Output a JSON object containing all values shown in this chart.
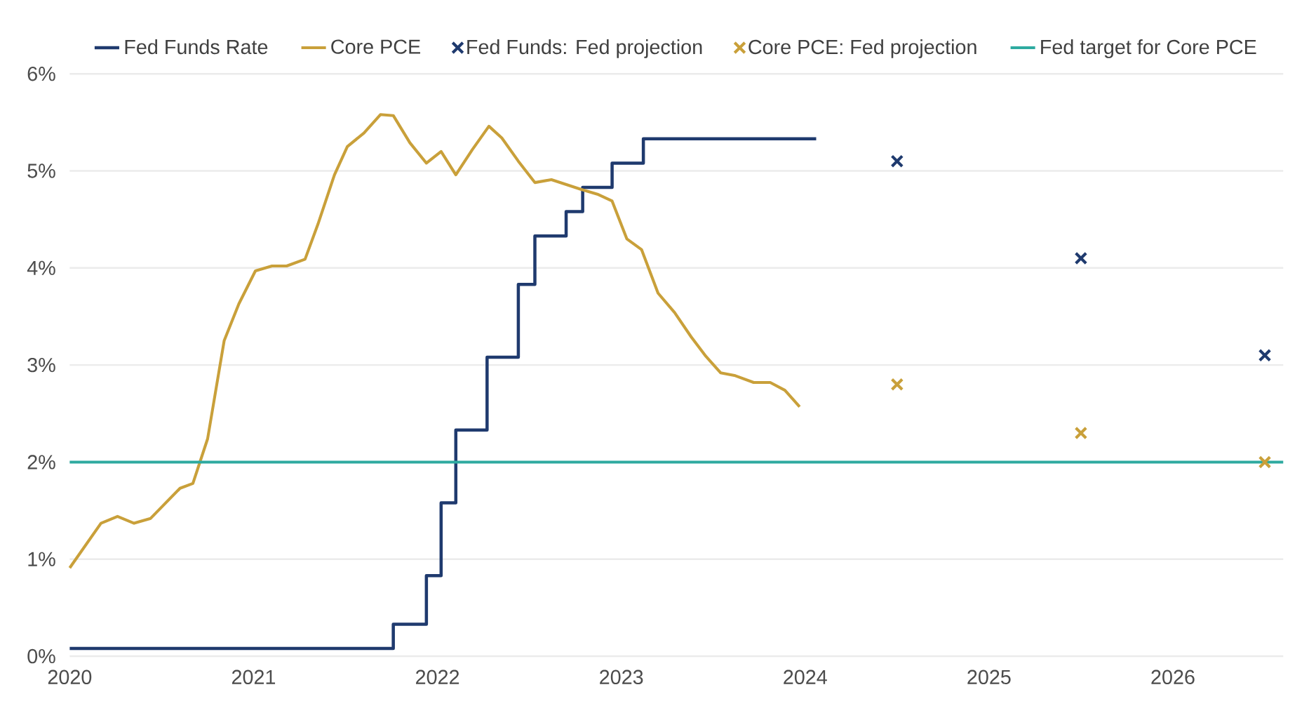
{
  "chart_data": {
    "type": "line",
    "xlim": [
      2020,
      2026.6
    ],
    "xticks": [
      2020,
      2021,
      2022,
      2023,
      2024,
      2025,
      2026
    ],
    "ylim": [
      0,
      6
    ],
    "yticks": [
      {
        "value": 0,
        "label": "0%"
      },
      {
        "value": 1,
        "label": "1%"
      },
      {
        "value": 2,
        "label": "2%"
      },
      {
        "value": 3,
        "label": "3%"
      },
      {
        "value": 4,
        "label": "4%"
      },
      {
        "value": 5,
        "label": "5%"
      },
      {
        "value": 6,
        "label": "6%"
      }
    ],
    "grid": "y",
    "legend": "top",
    "marker": "none",
    "line_style": "solid",
    "series": [
      {
        "name": "Fed Funds Rate",
        "type": "step",
        "color": "#1f3a6e",
        "x": [
          2020,
          2021.76,
          2021.94,
          2022.02,
          2022.1,
          2022.27,
          2022.44,
          2022.53,
          2022.7,
          2022.79,
          2022.95,
          2023.12,
          2024.06
        ],
        "values": [
          0.08,
          0.33,
          0.83,
          1.58,
          2.33,
          3.08,
          3.83,
          4.33,
          4.58,
          4.83,
          5.08,
          5.33,
          5.33
        ]
      },
      {
        "name": "Core PCE",
        "color": "#c9a03a",
        "x": [
          2020.0,
          2020.17,
          2020.26,
          2020.35,
          2020.44,
          2020.6,
          2020.67,
          2020.75,
          2020.84,
          2020.92,
          2021.01,
          2021.1,
          2021.18,
          2021.28,
          2021.35,
          2021.44,
          2021.51,
          2021.6,
          2021.69,
          2021.76,
          2021.85,
          2021.94,
          2022.02,
          2022.1,
          2022.19,
          2022.28,
          2022.35,
          2022.44,
          2022.53,
          2022.62,
          2022.7,
          2022.78,
          2022.87,
          2022.95,
          2023.03,
          2023.11,
          2023.2,
          2023.29,
          2023.38,
          2023.46,
          2023.54,
          2023.62,
          2023.72,
          2023.81,
          2023.89,
          2023.97
        ],
        "values": [
          0.91,
          1.37,
          1.44,
          1.37,
          1.42,
          1.73,
          1.78,
          2.24,
          3.25,
          3.63,
          3.97,
          4.02,
          4.02,
          4.09,
          4.45,
          4.96,
          5.25,
          5.39,
          5.58,
          5.57,
          5.29,
          5.08,
          5.2,
          4.96,
          5.22,
          5.46,
          5.34,
          5.1,
          4.88,
          4.91,
          4.86,
          4.81,
          4.76,
          4.69,
          4.3,
          4.19,
          3.74,
          3.54,
          3.29,
          3.09,
          2.92,
          2.89,
          2.82,
          2.82,
          2.74,
          2.57
        ]
      },
      {
        "name": "Fed Funds: Fed projection",
        "type": "scatter",
        "marker": "cross",
        "color": "#1f3a6e",
        "x": [
          2024.5,
          2025.5,
          2026.5
        ],
        "values": [
          5.1,
          4.1,
          3.1
        ]
      },
      {
        "name": "Core PCE: Fed projection",
        "type": "scatter",
        "marker": "cross",
        "color": "#c9a03a",
        "x": [
          2024.5,
          2025.5,
          2026.5
        ],
        "values": [
          2.8,
          2.3,
          2.0
        ]
      }
    ],
    "ref_lines": [
      {
        "axis": "y",
        "value": 2,
        "label": "Fed target for Core PCE",
        "color": "#2eaaa0"
      }
    ]
  }
}
